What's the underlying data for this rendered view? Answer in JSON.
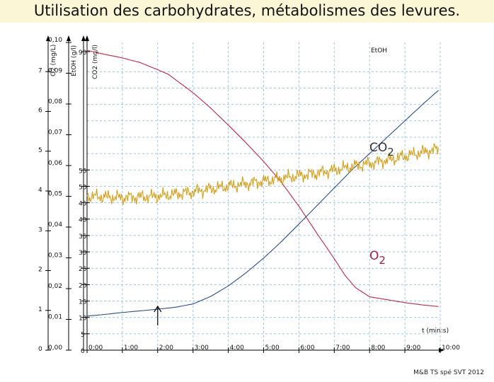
{
  "title": "Utilisation des carbohydrates, métabolismes des levures.",
  "footer": "M&B TS spé SVT 2012",
  "colors": {
    "background": "#ffffff",
    "title_background": "#fbf6d5",
    "o2": "#b5294a",
    "etoh": "#d1a01e",
    "co2": "#2b4e86",
    "grid": "#9fc5db"
  },
  "chart_data": {
    "type": "line",
    "title": "Utilisation des carbohydrates, métabolismes des levures.",
    "xlabel": "t (min:s)",
    "x_ticks": [
      "0:00",
      "1:00",
      "2:00",
      "3:00",
      "4:00",
      "5:00",
      "6:00",
      "7:00",
      "8:00",
      "9:00",
      "10:00"
    ],
    "xlim": [
      0,
      10
    ],
    "x_unit": "min",
    "axes": [
      {
        "id": "o2_mgl",
        "label": "O2 (mg/L)",
        "range": [
          0,
          8
        ],
        "ticks": [
          "0",
          "1",
          "2",
          "3",
          "4",
          "5",
          "6",
          "7"
        ]
      },
      {
        "id": "o2_fraction",
        "label": "",
        "range": [
          0,
          0.1
        ],
        "ticks": [
          "0,00",
          "0,01",
          "0,02",
          "0,03",
          "0,04",
          "0,05",
          "0,06",
          "0,07",
          "0,08",
          "0,09",
          "0,10"
        ]
      },
      {
        "id": "etoh",
        "label": "EtOH (g/l)",
        "range": [
          0,
          95
        ],
        "ticks": [
          "0",
          "5",
          "10",
          "15",
          "20",
          "25",
          "30",
          "35",
          "40",
          "45",
          "50",
          "55",
          "90"
        ]
      },
      {
        "id": "co2",
        "label": "CO2 (mg/l)",
        "range": [
          0,
          95
        ],
        "ticks": [
          "0",
          "5",
          "10",
          "15",
          "20",
          "25",
          "30",
          "35",
          "40",
          "45",
          "50",
          "55",
          "90"
        ]
      }
    ],
    "grid": true,
    "series": [
      {
        "name": "O2",
        "axis": "co2",
        "x": [
          0,
          0.5,
          1,
          1.5,
          2,
          2.3,
          2.6,
          3,
          3.5,
          4,
          4.5,
          5,
          5.5,
          6,
          6.5,
          7,
          7.3,
          7.6,
          8,
          8.5,
          9,
          9.5,
          9.97
        ],
        "y": [
          91.5,
          90.3,
          89.2,
          87.8,
          85.6,
          84.2,
          81.8,
          78.6,
          73.9,
          68.7,
          63.3,
          57.6,
          51.3,
          43.9,
          35.8,
          27.9,
          22.9,
          19.1,
          16.3,
          15.4,
          14.5,
          13.8,
          13.3
        ]
      },
      {
        "name": "CO2",
        "axis": "co2",
        "x": [
          0,
          0.5,
          1,
          1.5,
          2,
          2.5,
          3,
          3.5,
          4,
          4.5,
          5,
          5.5,
          6,
          6.5,
          7,
          7.5,
          8,
          8.5,
          9,
          9.5,
          9.97
        ],
        "y": [
          10.4,
          10.9,
          11.5,
          12.0,
          12.5,
          13.1,
          14.1,
          16.4,
          19.6,
          23.6,
          28.1,
          33.1,
          38.5,
          44.0,
          49.5,
          55.0,
          60.0,
          65.0,
          70.0,
          75.0,
          79.5
        ]
      },
      {
        "name": "EtOH",
        "axis": "etoh",
        "x": [
          0,
          0.5,
          1,
          1.5,
          2,
          2.5,
          3,
          3.5,
          4,
          4.5,
          5,
          5.5,
          6,
          6.5,
          7,
          7.5,
          8,
          8.5,
          9,
          9.5,
          9.97
        ],
        "y": [
          47.0,
          46.8,
          46.6,
          46.8,
          47.0,
          47.6,
          48.4,
          49.2,
          50.0,
          50.8,
          51.6,
          52.4,
          53.2,
          54.0,
          55.0,
          56.0,
          57.0,
          58.0,
          59.2,
          60.4,
          61.5
        ]
      }
    ],
    "annotations": [
      {
        "text": "EtOH",
        "color": "#d1a01e"
      },
      {
        "text": "CO",
        "subscript": "2",
        "color": "#333333"
      },
      {
        "text": "O",
        "subscript": "2",
        "color": "#9a2040"
      }
    ],
    "marker_x": 2
  }
}
